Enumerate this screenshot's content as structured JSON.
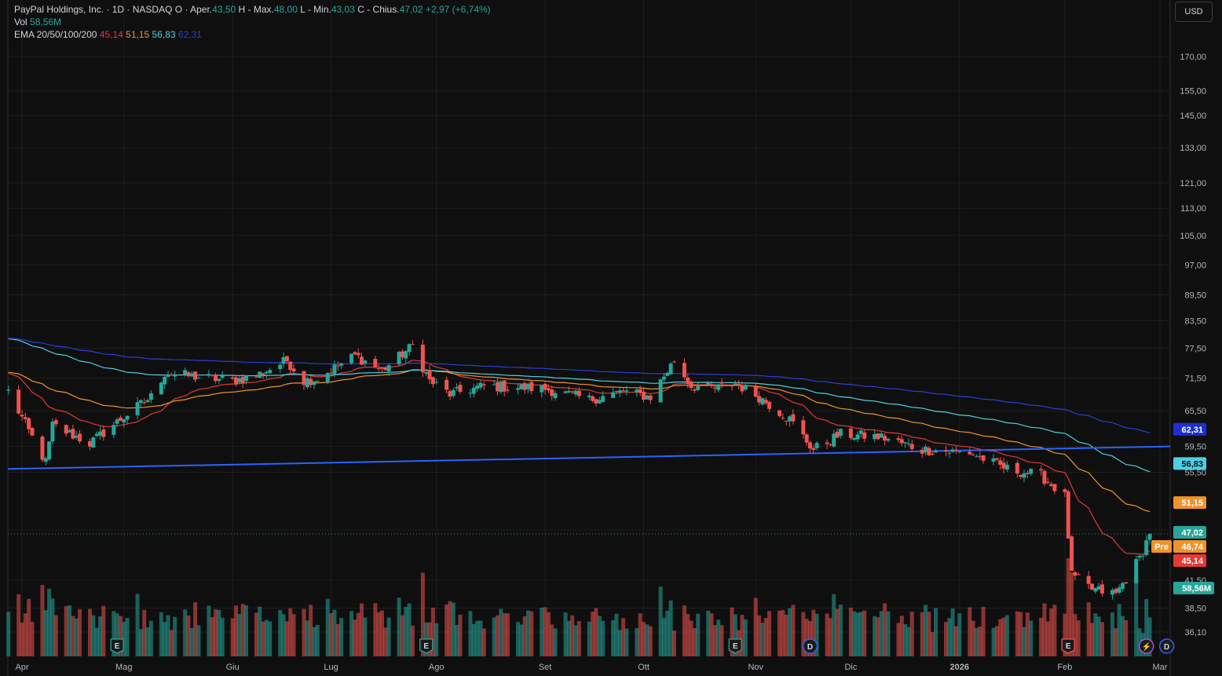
{
  "header": {
    "symbol": "PayPal Holdings, Inc. · 1D · NASDAQ",
    "open_label": "O",
    "open_key": "Aper.",
    "open": "43,50",
    "high_key": "H",
    "high_name": "Max.",
    "high": "48,00",
    "low_key": "L",
    "low_name": "Min.",
    "low": "43,03",
    "close_key": "C",
    "close_name": "Chius.",
    "close": "47,02",
    "change": "+2,97 (+6,74%)",
    "vol_label": "Vol",
    "vol": "58,56M",
    "ema_label": "EMA 20/50/100/200",
    "ema20": "45,14",
    "ema50": "51,15",
    "ema100": "56,83",
    "ema200": "62,31"
  },
  "currency": "USD",
  "colors": {
    "up": "#26a69a",
    "down": "#ef5350",
    "ema20": "#e53935",
    "ema50": "#f0932b",
    "ema100": "#4dd0e1",
    "ema200": "#2a3fd6",
    "trendline": "#2962ff",
    "background": "#0f0f0f",
    "grid": "#1e1e1e"
  },
  "chart_data": {
    "type": "candlestick",
    "scale": "log",
    "y_ticks": [
      "170,00",
      "155,00",
      "145,00",
      "133,00",
      "121,00",
      "113,00",
      "105,00",
      "97,00",
      "89,50",
      "83,50",
      "77,50",
      "71,50",
      "65,50",
      "59,50",
      "55,50",
      "47,50",
      "41,50",
      "38,50",
      "36,10"
    ],
    "y_tick_values": [
      170,
      155,
      145,
      133,
      121,
      113,
      105,
      97,
      89.5,
      83.5,
      77.5,
      71.5,
      65.5,
      59.5,
      55.5,
      47.5,
      41.5,
      38.5,
      36.1
    ],
    "ylim": [
      33.5,
      182
    ],
    "x_ticks": [
      "Apr",
      "Mag",
      "Giu",
      "Lug",
      "Ago",
      "Set",
      "Ott",
      "Nov",
      "Dic",
      "2026",
      "Feb",
      "Mar"
    ],
    "x_tick_values": [
      "2025-04-01",
      "2025-05-01",
      "2025-06-02",
      "2025-07-01",
      "2025-08-01",
      "2025-09-02",
      "2025-10-01",
      "2025-11-03",
      "2025-12-01",
      "2026-01-02",
      "2026-02-02",
      "2026-03-02"
    ],
    "anchor_points": [
      {
        "date": "2025-03-28",
        "close": 69.0
      },
      {
        "date": "2025-04-03",
        "close": 62.0
      },
      {
        "date": "2025-04-08",
        "close": 57.0
      },
      {
        "date": "2025-04-10",
        "close": 63.0
      },
      {
        "date": "2025-04-21",
        "close": 60.0
      },
      {
        "date": "2025-04-30",
        "close": 64.0
      },
      {
        "date": "2025-05-09",
        "close": 68.0
      },
      {
        "date": "2025-05-13",
        "close": 72.5
      },
      {
        "date": "2025-06-02",
        "close": 71.0
      },
      {
        "date": "2025-06-09",
        "close": 72.0
      },
      {
        "date": "2025-06-18",
        "close": 75.0
      },
      {
        "date": "2025-06-23",
        "close": 71.0
      },
      {
        "date": "2025-06-27",
        "close": 71.5
      },
      {
        "date": "2025-07-08",
        "close": 76.0
      },
      {
        "date": "2025-07-16",
        "close": 73.0
      },
      {
        "date": "2025-07-25",
        "close": 78.0
      },
      {
        "date": "2025-07-30",
        "close": 71.0
      },
      {
        "date": "2025-08-05",
        "close": 68.5
      },
      {
        "date": "2025-08-15",
        "close": 70.0
      },
      {
        "date": "2025-09-02",
        "close": 69.5
      },
      {
        "date": "2025-09-15",
        "close": 67.5
      },
      {
        "date": "2025-09-25",
        "close": 69.0
      },
      {
        "date": "2025-10-03",
        "close": 68.0
      },
      {
        "date": "2025-10-10",
        "close": 75.0
      },
      {
        "date": "2025-10-15",
        "close": 70.0
      },
      {
        "date": "2025-10-22",
        "close": 69.5
      },
      {
        "date": "2025-10-28",
        "close": 70.5
      },
      {
        "date": "2025-11-04",
        "close": 68.0
      },
      {
        "date": "2025-11-13",
        "close": 64.0
      },
      {
        "date": "2025-11-20",
        "close": 59.0
      },
      {
        "date": "2025-11-28",
        "close": 61.5
      },
      {
        "date": "2025-12-10",
        "close": 61.0
      },
      {
        "date": "2025-12-22",
        "close": 59.0
      },
      {
        "date": "2026-01-05",
        "close": 58.5
      },
      {
        "date": "2026-01-16",
        "close": 56.0
      },
      {
        "date": "2026-01-26",
        "close": 55.0
      },
      {
        "date": "2026-02-02",
        "close": 52.0
      },
      {
        "date": "2026-02-04",
        "close": 42.0
      },
      {
        "date": "2026-02-10",
        "close": 40.5
      },
      {
        "date": "2026-02-17",
        "close": 40.0
      },
      {
        "date": "2026-02-24",
        "close": 44.0
      },
      {
        "date": "2026-02-27",
        "close": 47.02
      }
    ],
    "last_close": 47.02,
    "pre_market": {
      "label": "Pre",
      "value": "46,74"
    },
    "ema_last": [
      {
        "name": "EMA 20",
        "value": 45.14,
        "label": "45,14"
      },
      {
        "name": "EMA 50",
        "value": 51.15,
        "label": "51,15"
      },
      {
        "name": "EMA 100",
        "value": 56.83,
        "label": "56,83"
      },
      {
        "name": "EMA 200",
        "value": 62.31,
        "label": "62,31"
      }
    ],
    "volume_last": "58,56M",
    "trendline": {
      "start": {
        "date": "2025-04-01",
        "value": 56.0
      },
      "end": {
        "date": "2026-03-02",
        "value": 59.5
      }
    },
    "events": [
      {
        "date": "2025-04-29",
        "type": "earnings",
        "label": "E"
      },
      {
        "date": "2025-07-29",
        "type": "earnings",
        "label": "E"
      },
      {
        "date": "2025-10-28",
        "type": "earnings",
        "label": "E"
      },
      {
        "date": "2025-11-19",
        "type": "dividend",
        "label": "D"
      },
      {
        "date": "2026-02-03",
        "type": "earnings",
        "label": "E"
      },
      {
        "date": "2026-02-26",
        "type": "flash",
        "label": "⚡"
      },
      {
        "date": "2026-03-04",
        "type": "dividend",
        "label": "D"
      }
    ]
  }
}
